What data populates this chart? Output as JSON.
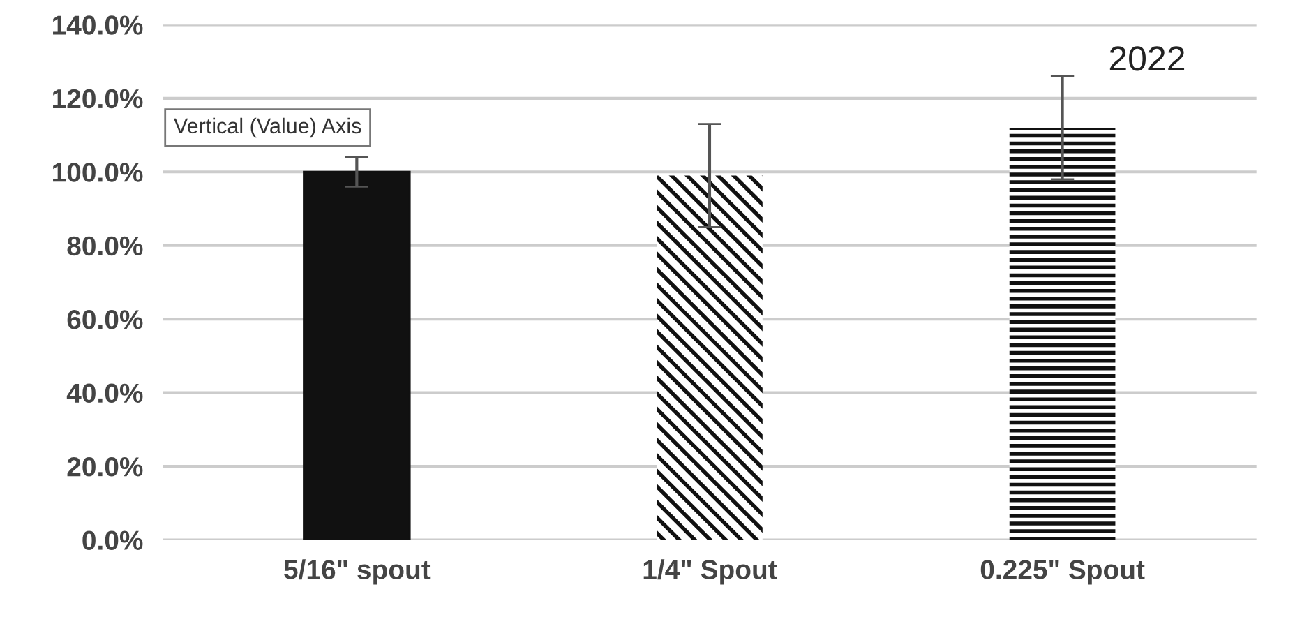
{
  "chart_data": {
    "type": "bar",
    "title": "2022",
    "categories": [
      "5/16\" spout",
      "1/4\" Spout",
      "0.225\" Spout"
    ],
    "values": [
      100,
      99,
      112
    ],
    "errors": [
      4,
      14,
      14
    ],
    "colors": [
      "#111111",
      "#111111",
      "#111111"
    ],
    "ylim": [
      0,
      140
    ],
    "yticks": [
      {
        "value": 0,
        "label": "0.0%"
      },
      {
        "value": 20,
        "label": "20.0%"
      },
      {
        "value": 40,
        "label": "40.0%"
      },
      {
        "value": 60,
        "label": "60.0%"
      },
      {
        "value": 80,
        "label": "80.0%"
      },
      {
        "value": 100,
        "label": "100.0%"
      },
      {
        "value": 120,
        "label": "120.0%"
      },
      {
        "value": 140,
        "label": "140.0%"
      }
    ],
    "grid": "y",
    "legend": false,
    "annotations": [
      "Vertical (Value) Axis"
    ]
  }
}
